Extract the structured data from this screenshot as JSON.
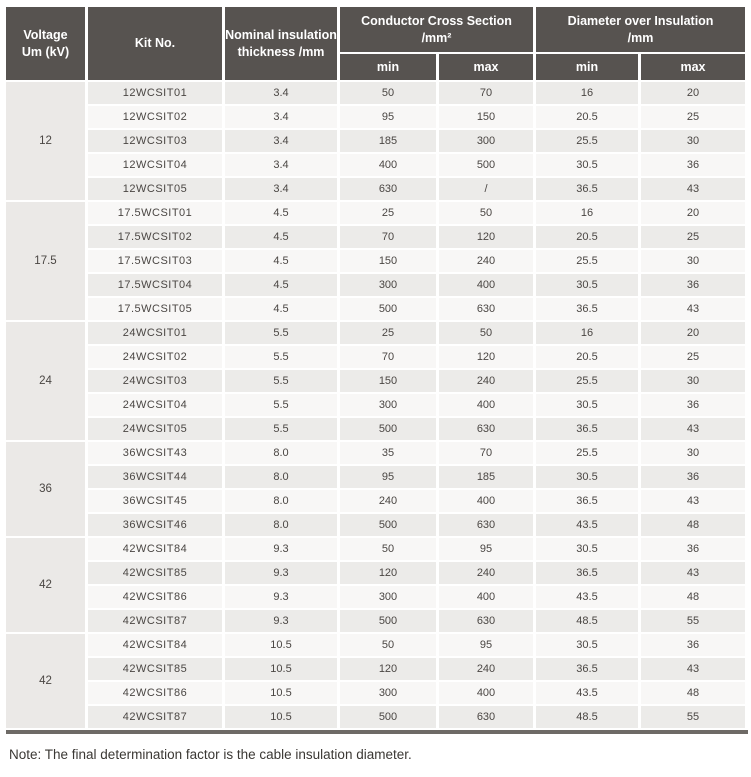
{
  "header": {
    "col_voltage": "Voltage\nUm (kV)",
    "col_kit": "Kit No.",
    "col_nominal": "Nominal insulation\nthickness /mm",
    "col_conductor": "Conductor Cross Section\n/mm²",
    "col_diameter": "Diameter over Insulation\n/mm",
    "sub_min": "min",
    "sub_max": "max"
  },
  "table": {
    "groups": [
      {
        "voltage": "12",
        "rows": [
          [
            "12WCSIT01",
            "3.4",
            "50",
            "70",
            "16",
            "20"
          ],
          [
            "12WCSIT02",
            "3.4",
            "95",
            "150",
            "20.5",
            "25"
          ],
          [
            "12WCSIT03",
            "3.4",
            "185",
            "300",
            "25.5",
            "30"
          ],
          [
            "12WCSIT04",
            "3.4",
            "400",
            "500",
            "30.5",
            "36"
          ],
          [
            "12WCSIT05",
            "3.4",
            "630",
            "/",
            "36.5",
            "43"
          ]
        ]
      },
      {
        "voltage": "17.5",
        "rows": [
          [
            "17.5WCSIT01",
            "4.5",
            "25",
            "50",
            "16",
            "20"
          ],
          [
            "17.5WCSIT02",
            "4.5",
            "70",
            "120",
            "20.5",
            "25"
          ],
          [
            "17.5WCSIT03",
            "4.5",
            "150",
            "240",
            "25.5",
            "30"
          ],
          [
            "17.5WCSIT04",
            "4.5",
            "300",
            "400",
            "30.5",
            "36"
          ],
          [
            "17.5WCSIT05",
            "4.5",
            "500",
            "630",
            "36.5",
            "43"
          ]
        ]
      },
      {
        "voltage": "24",
        "rows": [
          [
            "24WCSIT01",
            "5.5",
            "25",
            "50",
            "16",
            "20"
          ],
          [
            "24WCSIT02",
            "5.5",
            "70",
            "120",
            "20.5",
            "25"
          ],
          [
            "24WCSIT03",
            "5.5",
            "150",
            "240",
            "25.5",
            "30"
          ],
          [
            "24WCSIT04",
            "5.5",
            "300",
            "400",
            "30.5",
            "36"
          ],
          [
            "24WCSIT05",
            "5.5",
            "500",
            "630",
            "36.5",
            "43"
          ]
        ]
      },
      {
        "voltage": "36",
        "rows": [
          [
            "36WCSIT43",
            "8.0",
            "35",
            "70",
            "25.5",
            "30"
          ],
          [
            "36WCSIT44",
            "8.0",
            "95",
            "185",
            "30.5",
            "36"
          ],
          [
            "36WCSIT45",
            "8.0",
            "240",
            "400",
            "36.5",
            "43"
          ],
          [
            "36WCSIT46",
            "8.0",
            "500",
            "630",
            "43.5",
            "48"
          ]
        ]
      },
      {
        "voltage": "42",
        "rows": [
          [
            "42WCSIT84",
            "9.3",
            "50",
            "95",
            "30.5",
            "36"
          ],
          [
            "42WCSIT85",
            "9.3",
            "120",
            "240",
            "36.5",
            "43"
          ],
          [
            "42WCSIT86",
            "9.3",
            "300",
            "400",
            "43.5",
            "48"
          ],
          [
            "42WCSIT87",
            "9.3",
            "500",
            "630",
            "48.5",
            "55"
          ]
        ]
      },
      {
        "voltage": "42",
        "rows": [
          [
            "42WCSIT84",
            "10.5",
            "50",
            "95",
            "30.5",
            "36"
          ],
          [
            "42WCSIT85",
            "10.5",
            "120",
            "240",
            "36.5",
            "43"
          ],
          [
            "42WCSIT86",
            "10.5",
            "300",
            "400",
            "43.5",
            "48"
          ],
          [
            "42WCSIT87",
            "10.5",
            "500",
            "630",
            "48.5",
            "55"
          ]
        ]
      }
    ]
  },
  "note": "Note: The final determination factor is the cable insulation diameter.",
  "colors": {
    "header_bg": "#575350",
    "row_gray": "#ecebe9",
    "row_light": "#f8f7f6",
    "voltage_cell_bg": "#ebe9e7",
    "bottom_bar": "#6e6a66",
    "body_text": "#4a4643"
  }
}
